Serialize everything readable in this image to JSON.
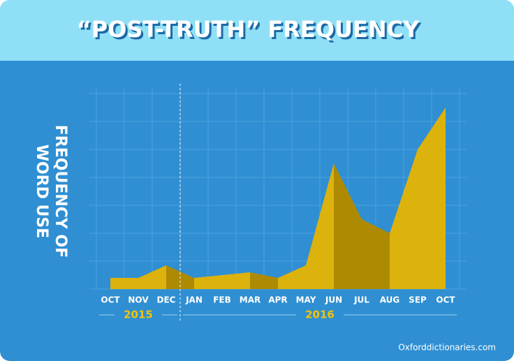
{
  "chart_data": {
    "type": "area",
    "title": "“POST-TRUTH” FREQUENCY",
    "ylabel": [
      "FREQUENCY OF",
      "WORD USE"
    ],
    "categories": [
      "OCT",
      "NOV",
      "DEC",
      "JAN",
      "FEB",
      "MAR",
      "APR",
      "MAY",
      "JUN",
      "JUL",
      "AUG",
      "SEP",
      "OCT"
    ],
    "category_years": [
      "2015",
      "2015",
      "2015",
      "2016",
      "2016",
      "2016",
      "2016",
      "2016",
      "2016",
      "2016",
      "2016",
      "2016",
      "2016"
    ],
    "values": [
      0.4,
      0.4,
      0.85,
      0.4,
      0.5,
      0.6,
      0.4,
      0.85,
      4.5,
      2.5,
      2.0,
      5.0,
      6.5
    ],
    "ylim": [
      0,
      7
    ],
    "yticks": [
      0,
      1,
      2,
      3,
      4,
      5,
      6,
      7
    ],
    "grid": true,
    "colors": {
      "rising": "#dcb20c",
      "falling": "#ae8a03"
    },
    "source": "Oxforddictionaries.com"
  }
}
